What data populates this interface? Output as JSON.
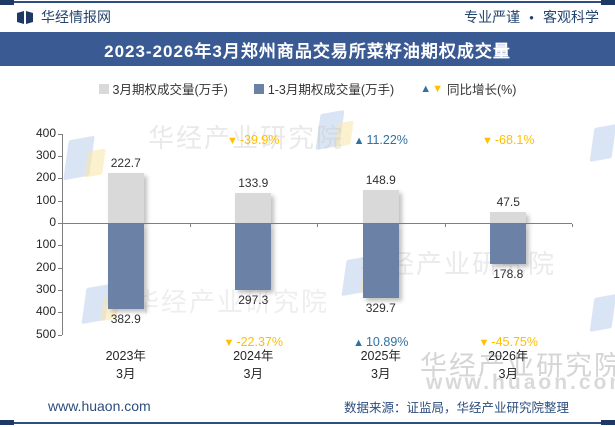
{
  "colors": {
    "navy": "#24446e",
    "title_bg": "#3a5a94",
    "bar_gray": "#d9d9d9",
    "bar_blue": "#6b82a6",
    "growth_up": "#31719f",
    "growth_down": "#ffc000",
    "axis": "#7f7f7f"
  },
  "header": {
    "brand": "华经情报网",
    "slogan_left": "专业严谨",
    "slogan_dot": "●",
    "slogan_right": "客观科学"
  },
  "title": "2023-2026年3月郑州商品交易所菜籽油期权成交量",
  "legend": {
    "item1": "3月期权成交量(万手)",
    "item2": "1-3月期权成交量(万手)",
    "item3": "同比增长(%)",
    "up_glyph": "▲",
    "down_glyph": "▼"
  },
  "chart_data": {
    "type": "bar",
    "title": "2023-2026年3月郑州商品交易所菜籽油期权成交量",
    "categories": [
      "2023年3月",
      "2024年3月",
      "2025年3月",
      "2026年3月"
    ],
    "unit": "万手",
    "axis": {
      "top_ticks": [
        "400",
        "300",
        "200",
        "100",
        "0"
      ],
      "bottom_ticks": [
        "100",
        "200",
        "300",
        "400",
        "500"
      ],
      "top_max": 400,
      "bottom_max": 500,
      "grid": false
    },
    "series": [
      {
        "name": "3月期权成交量(万手)",
        "side": "above-axis",
        "color": "#d9d9d9",
        "values": [
          222.7,
          133.9,
          148.9,
          47.5
        ]
      },
      {
        "name": "1-3月期权成交量(万手)",
        "side": "below-axis",
        "color": "#6b82a6",
        "values": [
          382.9,
          297.3,
          329.7,
          178.8
        ]
      },
      {
        "name": "同比增长(%)",
        "month_growth": [
          null,
          "-39.9%",
          "11.22%",
          "-68.1%"
        ],
        "cumulative_growth": [
          null,
          "-22.37%",
          "10.89%",
          "-45.75%"
        ]
      }
    ],
    "groups": [
      {
        "year": "2023年",
        "month": "3月",
        "month_volume": 222.7,
        "cum_volume": 382.9,
        "month_growth": null,
        "cum_growth": null
      },
      {
        "year": "2024年",
        "month": "3月",
        "month_volume": 133.9,
        "cum_volume": 297.3,
        "month_growth": "-39.9%",
        "cum_growth": "-22.37%"
      },
      {
        "year": "2025年",
        "month": "3月",
        "month_volume": 148.9,
        "cum_volume": 329.7,
        "month_growth": "11.22%",
        "cum_growth": "10.89%"
      },
      {
        "year": "2026年",
        "month": "3月",
        "month_volume": 47.5,
        "cum_volume": 178.8,
        "month_growth": "-68.1%",
        "cum_growth": "-45.75%"
      }
    ],
    "legend_position": "top"
  },
  "watermark": {
    "brand": "华经产业研究院",
    "site": "www.huaon.com"
  },
  "footer": {
    "site": "www.huaon.com",
    "source": "数据来源：证监局，华经产业研究院整理"
  }
}
